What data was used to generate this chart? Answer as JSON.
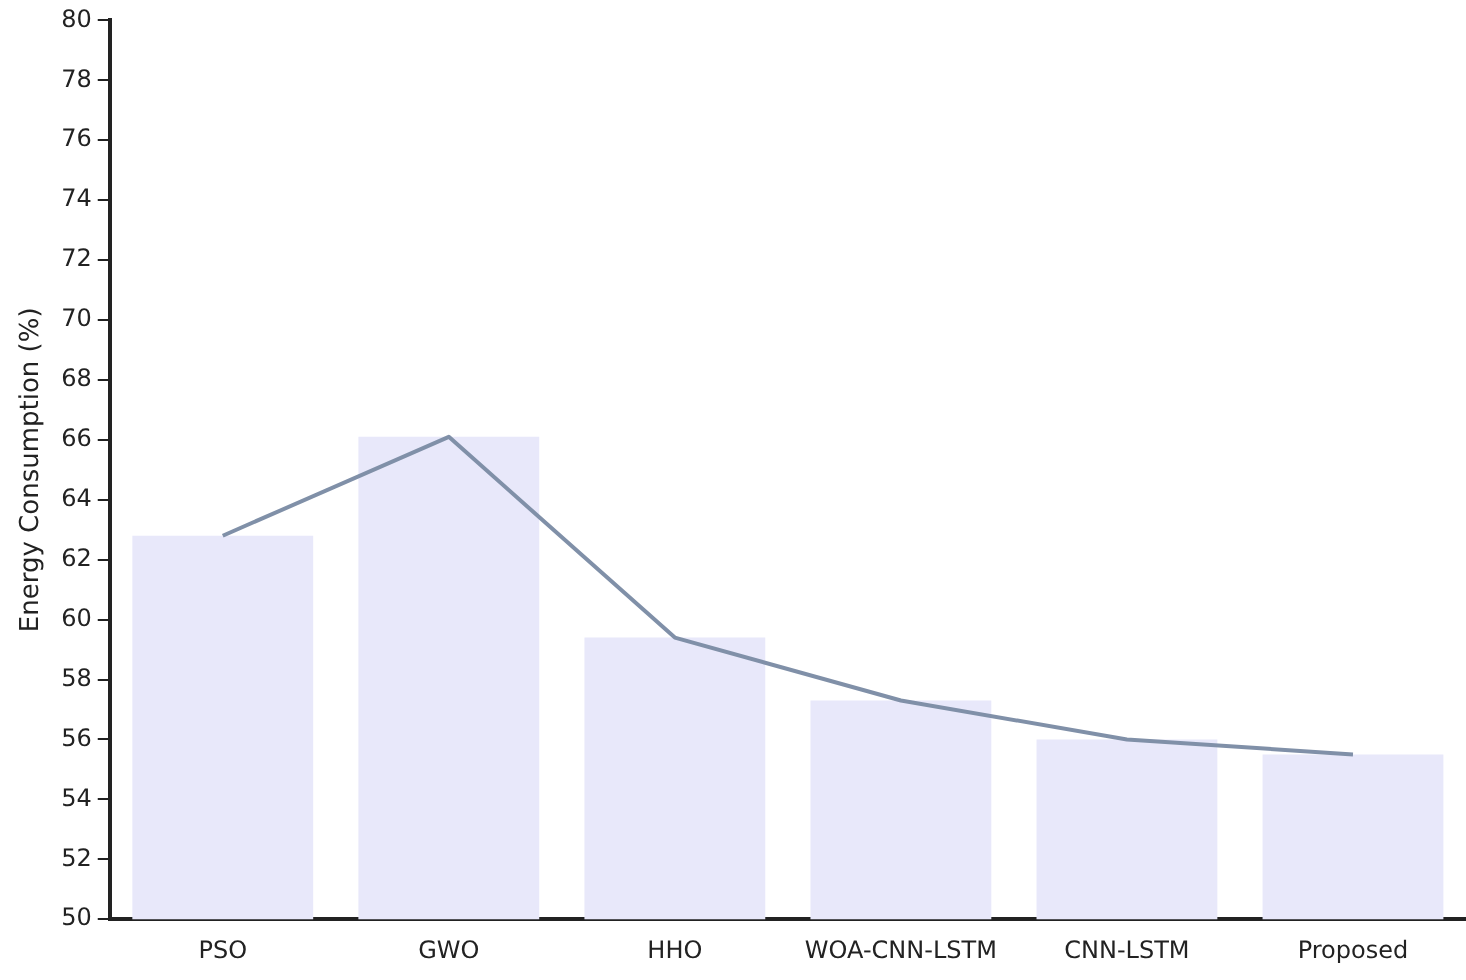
{
  "chart_data": {
    "type": "bar",
    "ylabel": "Energy Consumption (%)",
    "categories": [
      "PSO",
      "GWO",
      "HHO",
      "WOA-CNN-LSTM",
      "CNN-LSTM",
      "Proposed"
    ],
    "series": [
      {
        "color": "#e8e8fa",
        "values": [
          62.8,
          66.1,
          59.4,
          57.3,
          56.0,
          55.5
        ]
      },
      {
        "type": "line",
        "color": "#8090a8",
        "values": [
          62.8,
          66.1,
          59.4,
          57.3,
          56.0,
          55.5
        ]
      }
    ],
    "ylim": [
      50,
      80
    ],
    "yticks": [
      50,
      52,
      54,
      56,
      58,
      60,
      62,
      64,
      66,
      68,
      70,
      72,
      74,
      76,
      78,
      80
    ],
    "grid": false,
    "legend": false,
    "marker": "none",
    "line_style": "solid"
  }
}
